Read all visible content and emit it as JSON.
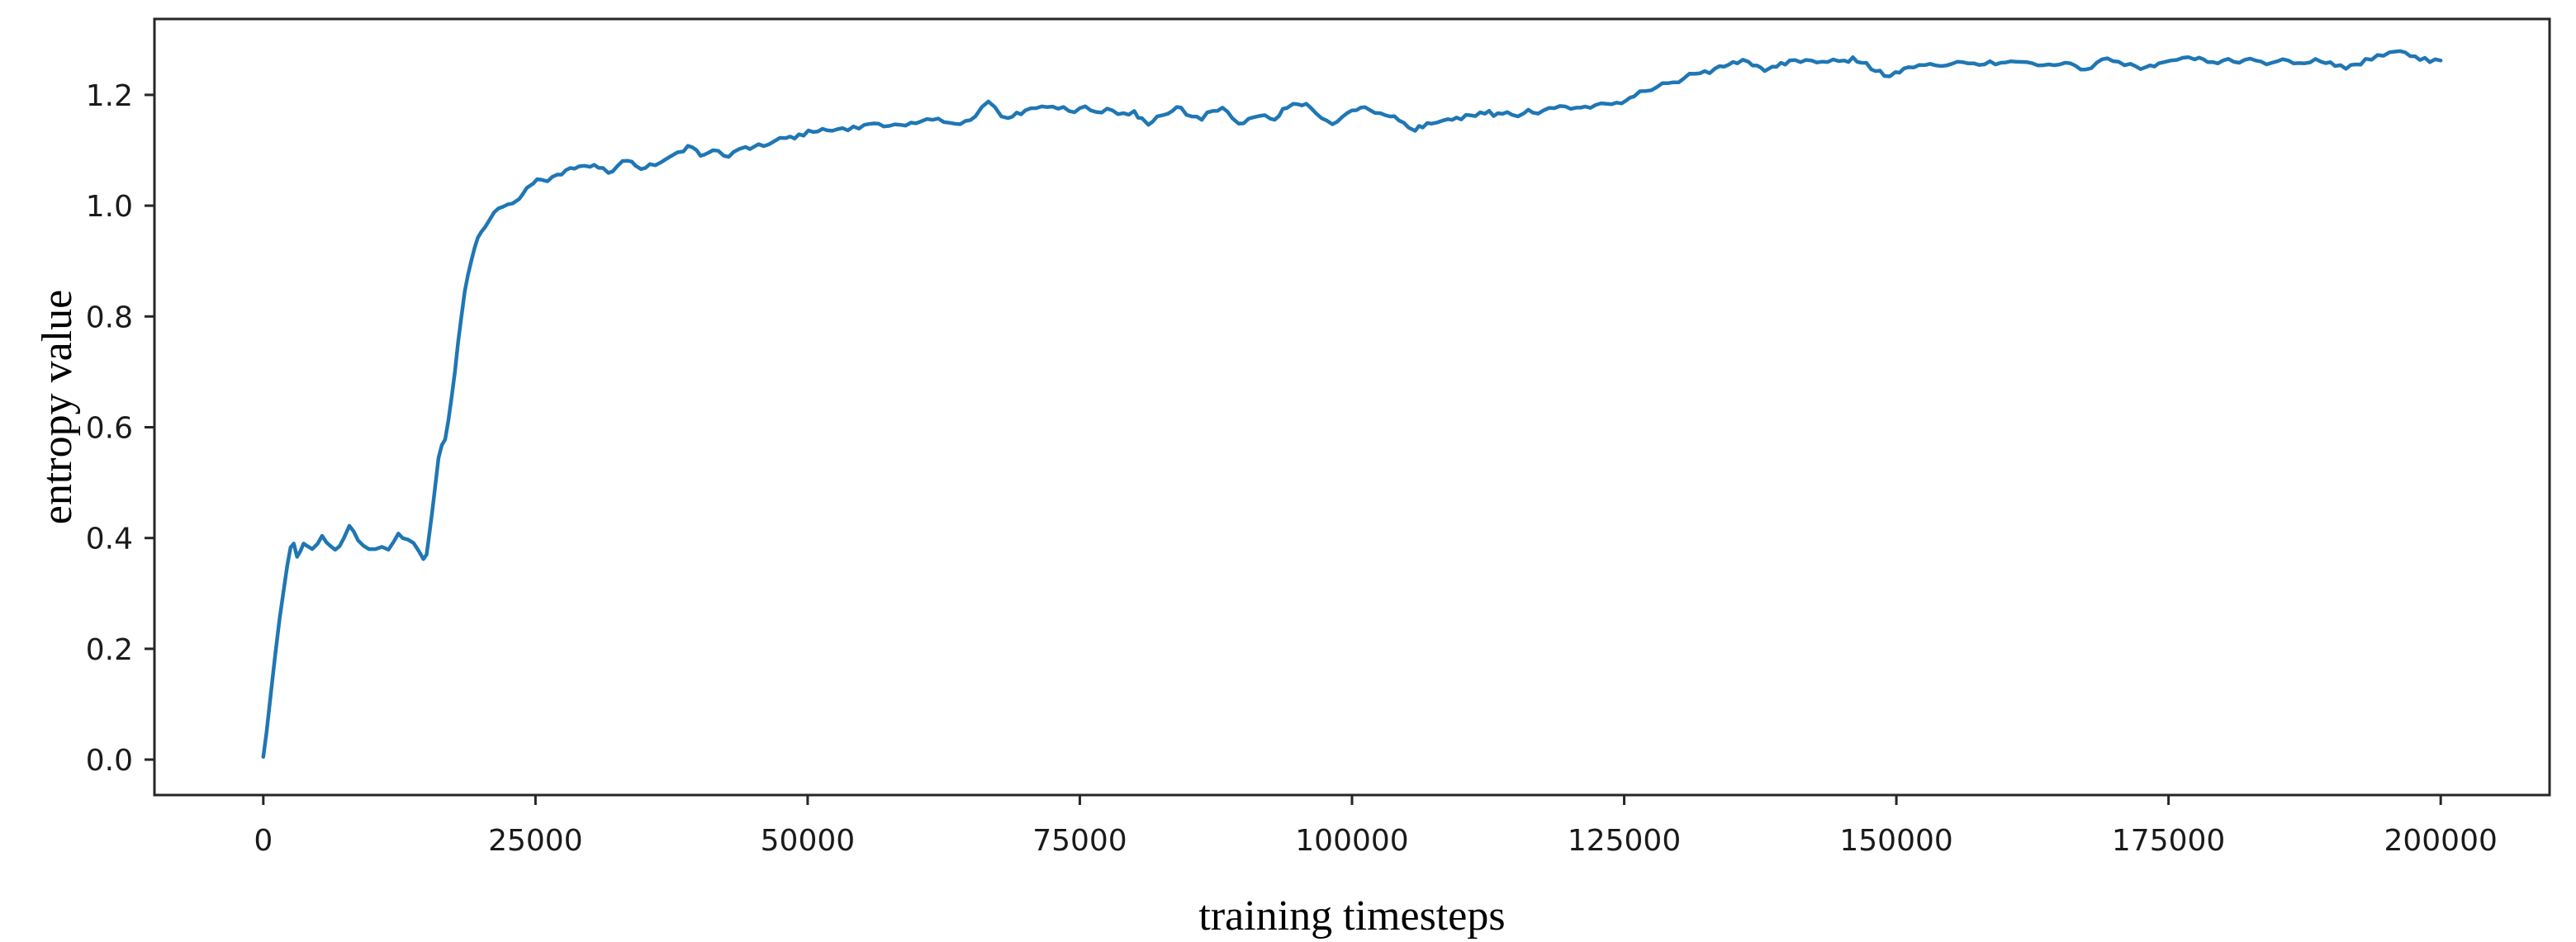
{
  "chart_data": {
    "type": "line",
    "title": "",
    "xlabel": "training timesteps",
    "ylabel": "entropy value",
    "xlim": [
      -10000,
      210000
    ],
    "ylim": [
      -0.064,
      1.337
    ],
    "xticks": [
      0,
      25000,
      50000,
      75000,
      100000,
      125000,
      150000,
      175000,
      200000
    ],
    "xtick_labels": [
      "0",
      "25000",
      "50000",
      "75000",
      "100000",
      "125000",
      "150000",
      "175000",
      "200000"
    ],
    "yticks": [
      0.0,
      0.2,
      0.4,
      0.6,
      0.8,
      1.0,
      1.2
    ],
    "ytick_labels": [
      "0.0",
      "0.2",
      "0.4",
      "0.6",
      "0.8",
      "1.0",
      "1.2"
    ],
    "grid": false,
    "legend": null,
    "line_color": "#1f77b4",
    "spine_color": "#262626",
    "background_color": "#ffffff",
    "noise_amplitude": 0.006,
    "series": [
      {
        "name": "entropy",
        "points": [
          [
            0,
            0.005
          ],
          [
            300,
            0.05
          ],
          [
            700,
            0.12
          ],
          [
            1100,
            0.19
          ],
          [
            1500,
            0.255
          ],
          [
            1900,
            0.31
          ],
          [
            2200,
            0.35
          ],
          [
            2500,
            0.383
          ],
          [
            2800,
            0.39
          ],
          [
            3100,
            0.366
          ],
          [
            3400,
            0.376
          ],
          [
            3700,
            0.39
          ],
          [
            4000,
            0.386
          ],
          [
            4500,
            0.38
          ],
          [
            5000,
            0.39
          ],
          [
            5400,
            0.404
          ],
          [
            5800,
            0.392
          ],
          [
            6200,
            0.385
          ],
          [
            6600,
            0.379
          ],
          [
            7000,
            0.385
          ],
          [
            7400,
            0.4
          ],
          [
            7900,
            0.422
          ],
          [
            8300,
            0.412
          ],
          [
            8700,
            0.396
          ],
          [
            9200,
            0.386
          ],
          [
            9700,
            0.38
          ],
          [
            10300,
            0.38
          ],
          [
            10900,
            0.384
          ],
          [
            11500,
            0.379
          ],
          [
            12000,
            0.394
          ],
          [
            12400,
            0.408
          ],
          [
            12800,
            0.4
          ],
          [
            13300,
            0.397
          ],
          [
            13800,
            0.391
          ],
          [
            14300,
            0.376
          ],
          [
            14700,
            0.362
          ],
          [
            15000,
            0.37
          ],
          [
            15200,
            0.4
          ],
          [
            15500,
            0.445
          ],
          [
            15800,
            0.495
          ],
          [
            16100,
            0.545
          ],
          [
            16400,
            0.568
          ],
          [
            16700,
            0.578
          ],
          [
            17000,
            0.612
          ],
          [
            17300,
            0.655
          ],
          [
            17600,
            0.7
          ],
          [
            17900,
            0.755
          ],
          [
            18200,
            0.8
          ],
          [
            18500,
            0.845
          ],
          [
            18800,
            0.875
          ],
          [
            19100,
            0.9
          ],
          [
            19400,
            0.923
          ],
          [
            19700,
            0.942
          ],
          [
            20000,
            0.952
          ],
          [
            20400,
            0.962
          ],
          [
            20800,
            0.975
          ],
          [
            21200,
            0.988
          ],
          [
            21600,
            0.995
          ],
          [
            22000,
            0.998
          ],
          [
            22900,
            1.004
          ],
          [
            23500,
            1.012
          ],
          [
            24200,
            1.032
          ],
          [
            24800,
            1.04
          ],
          [
            25500,
            1.047
          ],
          [
            26100,
            1.044
          ],
          [
            27000,
            1.056
          ],
          [
            28200,
            1.068
          ],
          [
            29000,
            1.071
          ],
          [
            30000,
            1.07
          ],
          [
            31200,
            1.068
          ],
          [
            31700,
            1.059
          ],
          [
            32500,
            1.071
          ],
          [
            33500,
            1.081
          ],
          [
            34200,
            1.072
          ],
          [
            34700,
            1.066
          ],
          [
            35500,
            1.075
          ],
          [
            36500,
            1.078
          ],
          [
            37500,
            1.09
          ],
          [
            38600,
            1.098
          ],
          [
            39000,
            1.108
          ],
          [
            39800,
            1.1
          ],
          [
            40500,
            1.092
          ],
          [
            41300,
            1.1
          ],
          [
            42300,
            1.09
          ],
          [
            43200,
            1.097
          ],
          [
            44300,
            1.106
          ],
          [
            45500,
            1.111
          ],
          [
            46900,
            1.116
          ],
          [
            48000,
            1.122
          ],
          [
            49200,
            1.129
          ],
          [
            50500,
            1.133
          ],
          [
            51800,
            1.136
          ],
          [
            53200,
            1.14
          ],
          [
            54200,
            1.143
          ],
          [
            55200,
            1.146
          ],
          [
            56500,
            1.148
          ],
          [
            57500,
            1.144
          ],
          [
            58500,
            1.146
          ],
          [
            59500,
            1.15
          ],
          [
            60400,
            1.152
          ],
          [
            61500,
            1.155
          ],
          [
            62500,
            1.151
          ],
          [
            63500,
            1.148
          ],
          [
            64500,
            1.153
          ],
          [
            65400,
            1.161
          ],
          [
            66000,
            1.178
          ],
          [
            66600,
            1.188
          ],
          [
            67200,
            1.178
          ],
          [
            67800,
            1.161
          ],
          [
            68400,
            1.158
          ],
          [
            69200,
            1.168
          ],
          [
            70000,
            1.172
          ],
          [
            71000,
            1.176
          ],
          [
            72000,
            1.178
          ],
          [
            73000,
            1.175
          ],
          [
            74000,
            1.171
          ],
          [
            75000,
            1.176
          ],
          [
            76000,
            1.172
          ],
          [
            77000,
            1.168
          ],
          [
            78000,
            1.172
          ],
          [
            79000,
            1.167
          ],
          [
            80000,
            1.171
          ],
          [
            80700,
            1.158
          ],
          [
            81300,
            1.146
          ],
          [
            82100,
            1.161
          ],
          [
            83100,
            1.166
          ],
          [
            84300,
            1.177
          ],
          [
            85300,
            1.161
          ],
          [
            86200,
            1.155
          ],
          [
            87200,
            1.171
          ],
          [
            88100,
            1.177
          ],
          [
            89000,
            1.158
          ],
          [
            89600,
            1.148
          ],
          [
            90500,
            1.157
          ],
          [
            91500,
            1.162
          ],
          [
            92500,
            1.157
          ],
          [
            93300,
            1.162
          ],
          [
            94000,
            1.176
          ],
          [
            94600,
            1.184
          ],
          [
            95400,
            1.181
          ],
          [
            96200,
            1.177
          ],
          [
            97200,
            1.158
          ],
          [
            98200,
            1.147
          ],
          [
            99100,
            1.16
          ],
          [
            100000,
            1.172
          ],
          [
            100800,
            1.177
          ],
          [
            101600,
            1.173
          ],
          [
            102600,
            1.167
          ],
          [
            103500,
            1.161
          ],
          [
            104300,
            1.154
          ],
          [
            105200,
            1.141
          ],
          [
            105800,
            1.135
          ],
          [
            106500,
            1.141
          ],
          [
            107300,
            1.148
          ],
          [
            108400,
            1.154
          ],
          [
            109600,
            1.159
          ],
          [
            110900,
            1.163
          ],
          [
            112200,
            1.166
          ],
          [
            113400,
            1.167
          ],
          [
            114700,
            1.164
          ],
          [
            115800,
            1.167
          ],
          [
            116600,
            1.168
          ],
          [
            117600,
            1.172
          ],
          [
            118600,
            1.176
          ],
          [
            119600,
            1.179
          ],
          [
            120600,
            1.177
          ],
          [
            121400,
            1.179
          ],
          [
            122400,
            1.182
          ],
          [
            123400,
            1.184
          ],
          [
            124300,
            1.186
          ],
          [
            125200,
            1.19
          ],
          [
            125900,
            1.197
          ],
          [
            127000,
            1.207
          ],
          [
            128000,
            1.214
          ],
          [
            129000,
            1.221
          ],
          [
            130500,
            1.23
          ],
          [
            131500,
            1.238
          ],
          [
            132400,
            1.243
          ],
          [
            133300,
            1.247
          ],
          [
            134200,
            1.251
          ],
          [
            135400,
            1.257
          ],
          [
            136400,
            1.26
          ],
          [
            137200,
            1.253
          ],
          [
            137900,
            1.243
          ],
          [
            138600,
            1.251
          ],
          [
            139400,
            1.258
          ],
          [
            140200,
            1.262
          ],
          [
            141200,
            1.259
          ],
          [
            142200,
            1.262
          ],
          [
            143200,
            1.26
          ],
          [
            144200,
            1.264
          ],
          [
            145200,
            1.262
          ],
          [
            146000,
            1.268
          ],
          [
            146800,
            1.258
          ],
          [
            147700,
            1.246
          ],
          [
            148900,
            1.234
          ],
          [
            149900,
            1.241
          ],
          [
            151100,
            1.25
          ],
          [
            152100,
            1.254
          ],
          [
            153100,
            1.256
          ],
          [
            154100,
            1.252
          ],
          [
            155100,
            1.256
          ],
          [
            156100,
            1.259
          ],
          [
            157100,
            1.257
          ],
          [
            158100,
            1.255
          ],
          [
            159600,
            1.258
          ],
          [
            161000,
            1.26
          ],
          [
            162500,
            1.257
          ],
          [
            164000,
            1.255
          ],
          [
            165500,
            1.258
          ],
          [
            166500,
            1.252
          ],
          [
            167400,
            1.246
          ],
          [
            168400,
            1.258
          ],
          [
            169400,
            1.266
          ],
          [
            170400,
            1.26
          ],
          [
            171500,
            1.256
          ],
          [
            172900,
            1.25
          ],
          [
            174100,
            1.257
          ],
          [
            175200,
            1.262
          ],
          [
            176300,
            1.267
          ],
          [
            177400,
            1.264
          ],
          [
            178600,
            1.259
          ],
          [
            180000,
            1.262
          ],
          [
            181500,
            1.258
          ],
          [
            183000,
            1.262
          ],
          [
            184500,
            1.258
          ],
          [
            186000,
            1.262
          ],
          [
            187500,
            1.257
          ],
          [
            189000,
            1.26
          ],
          [
            190300,
            1.252
          ],
          [
            191300,
            1.247
          ],
          [
            192200,
            1.255
          ],
          [
            193100,
            1.265
          ],
          [
            194200,
            1.272
          ],
          [
            195300,
            1.277
          ],
          [
            196300,
            1.279
          ],
          [
            197200,
            1.27
          ],
          [
            198100,
            1.263
          ],
          [
            199000,
            1.259
          ],
          [
            200000,
            1.262
          ]
        ]
      }
    ]
  }
}
